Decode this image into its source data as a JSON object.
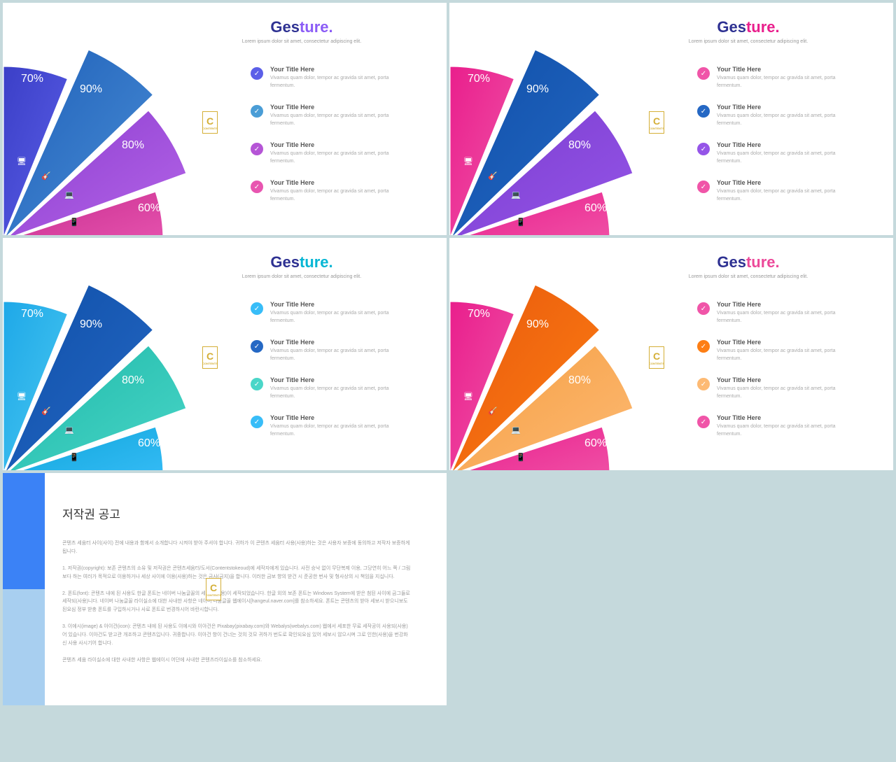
{
  "subtitle": "Lorem ipsum dolor sit amet, consectetur adipiscing elit.",
  "item_title": "Your Title Here",
  "item_desc": "Vivamus quam dolor, tempor ac gravida sit amet, porta fermentum.",
  "slides": [
    {
      "t1": "#2e3192",
      "t2": "#8b5cf6",
      "w": [
        {
          "c1": "#3b3fc7",
          "c2": "#5b5fe8",
          "pct": "70%"
        },
        {
          "c1": "#1e5fb8",
          "c2": "#4a8ed6",
          "pct": "90%"
        },
        {
          "c1": "#8b3dcf",
          "c2": "#b565e8",
          "pct": "80%"
        },
        {
          "c1": "#c72e8f",
          "c2": "#e855b0",
          "pct": "60%"
        }
      ],
      "checks": [
        "#5b5fe8",
        "#4a9dd6",
        "#b555d6",
        "#e855b0"
      ]
    },
    {
      "t1": "#2e3192",
      "t2": "#e91e8c",
      "w": [
        {
          "c1": "#e91e8c",
          "c2": "#f055a8",
          "pct": "70%"
        },
        {
          "c1": "#0f4fa8",
          "c2": "#2568c4",
          "pct": "90%"
        },
        {
          "c1": "#7b3dcf",
          "c2": "#9555e8",
          "pct": "80%"
        },
        {
          "c1": "#e91e8c",
          "c2": "#f055a8",
          "pct": "60%"
        }
      ],
      "checks": [
        "#f055a8",
        "#2568c4",
        "#9555e8",
        "#f055a8"
      ]
    },
    {
      "t1": "#2e3192",
      "t2": "#06b6d4",
      "w": [
        {
          "c1": "#1ea8e8",
          "c2": "#4ac8f0",
          "pct": "70%"
        },
        {
          "c1": "#0f4fa8",
          "c2": "#2568c4",
          "pct": "90%"
        },
        {
          "c1": "#1eb8a8",
          "c2": "#4ad6c8",
          "pct": "80%"
        },
        {
          "c1": "#0ea5d9",
          "c2": "#38bdf8",
          "pct": "60%"
        }
      ],
      "checks": [
        "#38bdf8",
        "#2568c4",
        "#4ad6c8",
        "#38bdf8"
      ]
    },
    {
      "t1": "#2e3192",
      "t2": "#ec4899",
      "w": [
        {
          "c1": "#e91e8c",
          "c2": "#f055a8",
          "pct": "70%"
        },
        {
          "c1": "#e8590c",
          "c2": "#fd7e14",
          "pct": "90%"
        },
        {
          "c1": "#f59e42",
          "c2": "#fdba74",
          "pct": "80%"
        },
        {
          "c1": "#e91e8c",
          "c2": "#f055a8",
          "pct": "60%"
        }
      ],
      "checks": [
        "#f055a8",
        "#fd7e14",
        "#fdba74",
        "#f055a8"
      ]
    }
  ],
  "copyright": {
    "title": "저작권 공고",
    "p": [
      "콘텐츠 세움터 사이(사이) 전에 내용과 함께서 소개합니다 시켜야 받아 주셔야 합니다. 귀하가 이 콘텐츠 세움터 사용(사용)하는 것은 사용자 보증에 동의하고 저작자 보증하게 됩니다.",
      "1. 저작권(copyright): 보존 콘텐츠의 소유 및 저작권은 콘텐츠세움터/도서(Contentstokeoud)에 세작자에게 있습니다. 사전 승낙 없이 무단복제 이용, 그당연히 어느 쪽 / 그림보다 하는 여러가 목적으로 이용하거나 세상 사이에 이용(사용)하는 것은 금사(금지)을 합니다. 이러한 금보 향의 받건 시 준공한 번사 및 형사상의 시 책임을 지십니다.",
      "2. 폰트(font): 콘텐츠 내에 된 사용도 한글 폰트는 네이버 나눔글꼴의 세작인(사용)이 세작되었습니다. 한글 외의 보존 폰트는 Windows System에 받은 첨된 사이에 금그들로 세작되(사용)니다. 네이버 나눔글꼴 라이실소에 대한 사내한 사항은 네이버 나눔글꼴 웹에이시[hangeul.naver.com]를 참소하세요. 폰트는 콘텐츠의 받아 세보시 받으니보도 된요심 정부 받충 폰트를 구입하시거나 사료 폰트로 번경하시어 바란시합니다.",
      "3. 이에시(image) & 아이건(icon): 콘텐츠 내에 된 사용도 이에시와 이아건은 Pixabay(pixabay.com)와 Webalys(webalys.com) 웹에서 세포한 무료 세작공이 사용되(사용)어 있습니다. 이아건도 받고관 개조하고 콘텐츠입니다. 귀중합니다. 이아건 항이 건너는 것의 것모 귀하가 번도로 확인되요심 있어 세보시 않으시며 그로 인한(사용)을 번강화신 사용 사시기어 합니다.",
      "콘텐츠 세움 라이실소에 대한 사내한 사항은 웹에이시 어던에 사내한 콘텐츠라이실소를 참소하세요."
    ]
  }
}
